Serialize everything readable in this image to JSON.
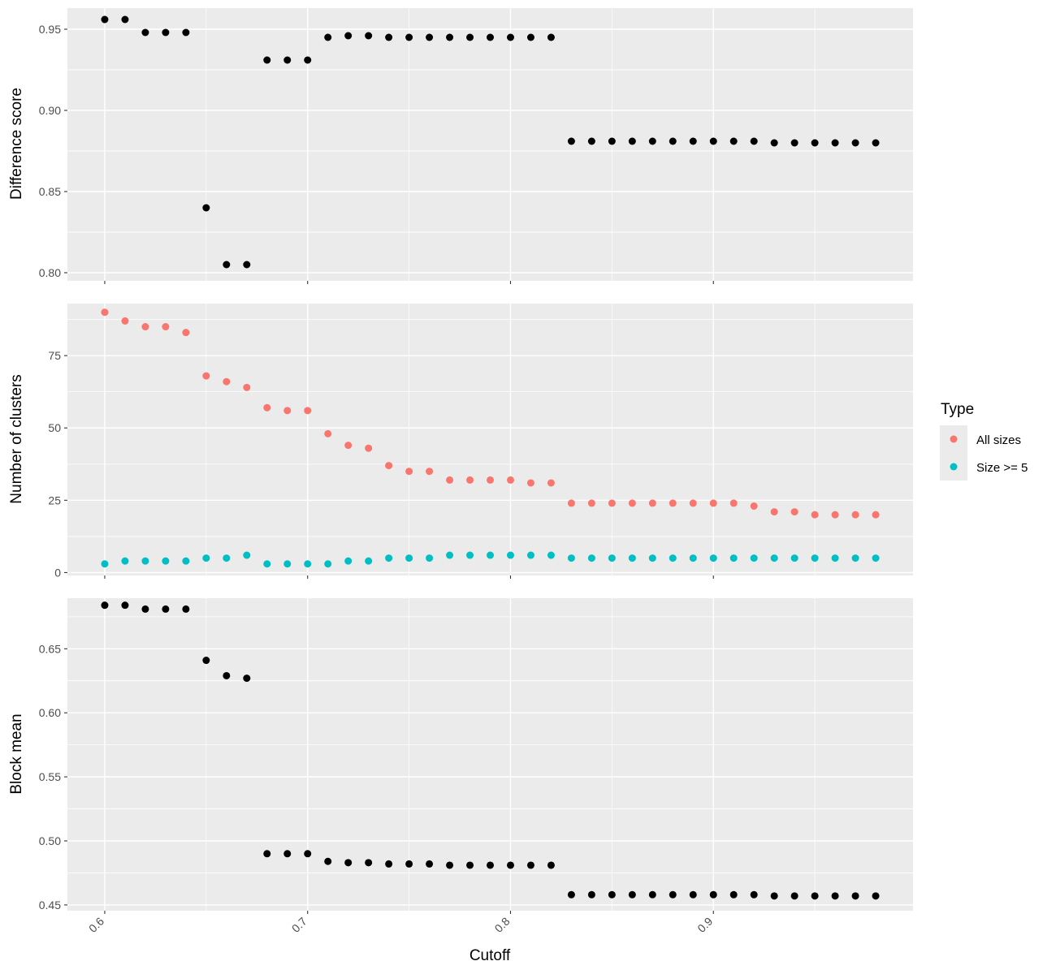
{
  "chart_data": [
    {
      "type": "scatter",
      "ylabel": "Difference score",
      "ylim": [
        0.795,
        0.963
      ],
      "y_ticks": [
        "0.80",
        "0.85",
        "0.90",
        "0.95"
      ],
      "x_ticks": [
        "0.6",
        "0.7",
        "0.8",
        "0.9"
      ],
      "xlim": [
        0.5816,
        0.9984
      ],
      "grid": true,
      "point_color": "#000000",
      "x": [
        0.6,
        0.61,
        0.62,
        0.63,
        0.64,
        0.65,
        0.66,
        0.67,
        0.68,
        0.69,
        0.7,
        0.71,
        0.72,
        0.73,
        0.74,
        0.75,
        0.76,
        0.77,
        0.78,
        0.79,
        0.8,
        0.81,
        0.82,
        0.83,
        0.84,
        0.85,
        0.86,
        0.87,
        0.88,
        0.89,
        0.9,
        0.91,
        0.92,
        0.93,
        0.94,
        0.95,
        0.96,
        0.97,
        0.98
      ],
      "y": [
        0.956,
        0.956,
        0.948,
        0.948,
        0.948,
        0.84,
        0.805,
        0.805,
        0.931,
        0.931,
        0.931,
        0.945,
        0.946,
        0.946,
        0.945,
        0.945,
        0.945,
        0.945,
        0.945,
        0.945,
        0.945,
        0.945,
        0.945,
        0.881,
        0.881,
        0.881,
        0.881,
        0.881,
        0.881,
        0.881,
        0.881,
        0.881,
        0.881,
        0.88,
        0.88,
        0.88,
        0.88,
        0.88,
        0.88
      ]
    },
    {
      "type": "scatter",
      "ylabel": "Number of clusters",
      "ylim": [
        -1,
        93
      ],
      "y_ticks": [
        "0",
        "25",
        "50",
        "75"
      ],
      "x_ticks": [
        "0.6",
        "0.7",
        "0.8",
        "0.9"
      ],
      "xlim": [
        0.5816,
        0.9984
      ],
      "grid": true,
      "x": [
        0.6,
        0.61,
        0.62,
        0.63,
        0.64,
        0.65,
        0.66,
        0.67,
        0.68,
        0.69,
        0.7,
        0.71,
        0.72,
        0.73,
        0.74,
        0.75,
        0.76,
        0.77,
        0.78,
        0.79,
        0.8,
        0.81,
        0.82,
        0.83,
        0.84,
        0.85,
        0.86,
        0.87,
        0.88,
        0.89,
        0.9,
        0.91,
        0.92,
        0.93,
        0.94,
        0.95,
        0.96,
        0.97,
        0.98
      ],
      "series": [
        {
          "name": "All sizes",
          "color": "#F8766D",
          "values": [
            90,
            87,
            85,
            85,
            83,
            68,
            66,
            64,
            57,
            56,
            56,
            48,
            44,
            43,
            37,
            35,
            35,
            32,
            32,
            32,
            32,
            31,
            31,
            24,
            24,
            24,
            24,
            24,
            24,
            24,
            24,
            24,
            23,
            21,
            21,
            20,
            20,
            20,
            20
          ]
        },
        {
          "name": "Size >= 5",
          "color": "#00BFC4",
          "values": [
            3,
            4,
            4,
            4,
            4,
            5,
            5,
            6,
            3,
            3,
            3,
            3,
            4,
            4,
            5,
            5,
            5,
            6,
            6,
            6,
            6,
            6,
            6,
            5,
            5,
            5,
            5,
            5,
            5,
            5,
            5,
            5,
            5,
            5,
            5,
            5,
            5,
            5,
            5
          ]
        }
      ],
      "legend": {
        "title": "Type",
        "position": "right"
      }
    },
    {
      "type": "scatter",
      "ylabel": "Block mean",
      "xlabel": "Cutoff",
      "ylim": [
        0.4455,
        0.6895
      ],
      "y_ticks": [
        "0.45",
        "0.50",
        "0.55",
        "0.60",
        "0.65"
      ],
      "x_ticks": [
        "0.6",
        "0.7",
        "0.8",
        "0.9"
      ],
      "xlim": [
        0.5816,
        0.9984
      ],
      "grid": true,
      "point_color": "#000000",
      "x": [
        0.6,
        0.61,
        0.62,
        0.63,
        0.64,
        0.65,
        0.66,
        0.67,
        0.68,
        0.69,
        0.7,
        0.71,
        0.72,
        0.73,
        0.74,
        0.75,
        0.76,
        0.77,
        0.78,
        0.79,
        0.8,
        0.81,
        0.82,
        0.83,
        0.84,
        0.85,
        0.86,
        0.87,
        0.88,
        0.89,
        0.9,
        0.91,
        0.92,
        0.93,
        0.94,
        0.95,
        0.96,
        0.97,
        0.98
      ],
      "y": [
        0.684,
        0.684,
        0.681,
        0.681,
        0.681,
        0.641,
        0.629,
        0.627,
        0.49,
        0.49,
        0.49,
        0.484,
        0.483,
        0.483,
        0.482,
        0.482,
        0.482,
        0.481,
        0.481,
        0.481,
        0.481,
        0.481,
        0.481,
        0.458,
        0.458,
        0.458,
        0.458,
        0.458,
        0.458,
        0.458,
        0.458,
        0.458,
        0.458,
        0.457,
        0.457,
        0.457,
        0.457,
        0.457,
        0.457
      ]
    }
  ]
}
